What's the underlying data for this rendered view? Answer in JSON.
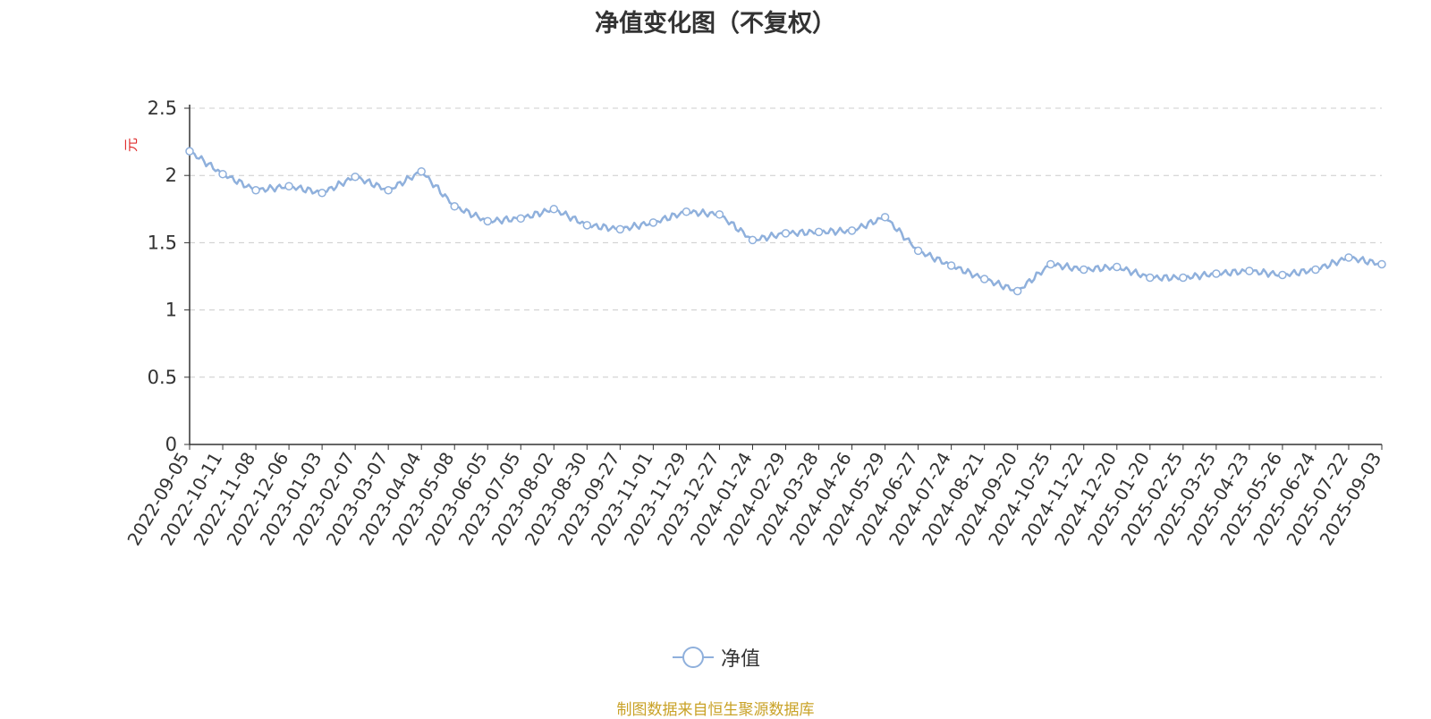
{
  "chart_data": {
    "type": "line",
    "title": "净值变化图（不复权）",
    "ylabel": "元",
    "ylim": [
      0,
      2.5
    ],
    "yticks": [
      "0",
      "0.5",
      "1",
      "1.5",
      "2",
      "2.5"
    ],
    "grid": "horizontal-dashed",
    "legend_placement": "bottom",
    "series": [
      {
        "name": "净值",
        "color": "#8fb0dc",
        "x": [
          "2022-09-05",
          "2022-10-11",
          "2022-11-08",
          "2022-12-06",
          "2023-01-03",
          "2023-02-07",
          "2023-03-07",
          "2023-04-04",
          "2023-05-08",
          "2023-06-05",
          "2023-07-05",
          "2023-08-02",
          "2023-08-30",
          "2023-09-27",
          "2023-11-01",
          "2023-11-29",
          "2023-12-27",
          "2024-01-24",
          "2024-02-29",
          "2024-03-28",
          "2024-04-26",
          "2024-05-29",
          "2024-06-27",
          "2024-07-24",
          "2024-08-21",
          "2024-09-20",
          "2024-10-25",
          "2024-11-22",
          "2024-12-20",
          "2025-01-20",
          "2025-02-25",
          "2025-03-25",
          "2025-04-23",
          "2025-05-26",
          "2025-06-24",
          "2025-07-22",
          "2025-09-03"
        ],
        "values": [
          2.18,
          2.01,
          1.89,
          1.92,
          1.87,
          1.99,
          1.89,
          2.03,
          1.77,
          1.66,
          1.68,
          1.75,
          1.63,
          1.6,
          1.65,
          1.73,
          1.71,
          1.52,
          1.57,
          1.58,
          1.59,
          1.69,
          1.44,
          1.33,
          1.23,
          1.14,
          1.34,
          1.3,
          1.32,
          1.24,
          1.24,
          1.27,
          1.29,
          1.26,
          1.3,
          1.39,
          1.34
        ]
      }
    ]
  },
  "footer": {
    "source": "制图数据来自恒生聚源数据库"
  }
}
